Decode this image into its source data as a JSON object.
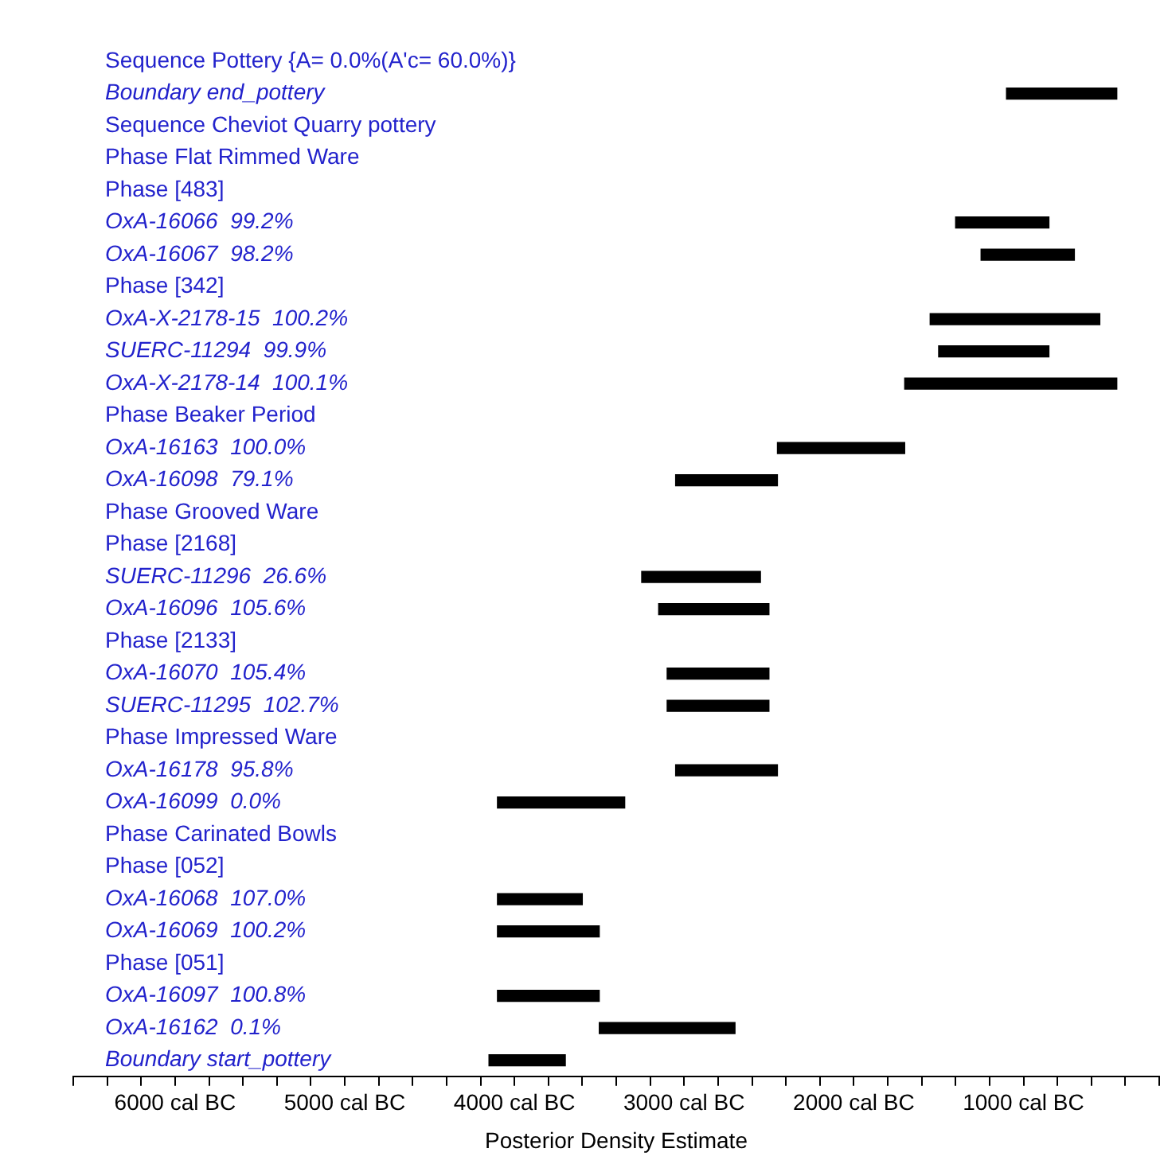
{
  "chart_data": {
    "type": "bar",
    "orientation": "horizontal",
    "xlabel": "Posterior Density Estimate",
    "categories": [
      "Sequence Pottery {A= 0.0%(A'c= 60.0%)}",
      "Boundary end_pottery",
      "Sequence Cheviot Quarry pottery",
      "Phase Flat Rimmed Ware",
      "Phase [483]",
      "OxA-16066  99.2%",
      "OxA-16067  98.2%",
      "Phase [342]",
      "OxA-X-2178-15  100.2%",
      "SUERC-11294  99.9%",
      "OxA-X-2178-14  100.1%",
      "Phase Beaker Period",
      "OxA-16163  100.0%",
      "OxA-16098  79.1%",
      "Phase Grooved Ware",
      "Phase [2168]",
      "SUERC-11296  26.6%",
      "OxA-16096  105.6%",
      "Phase [2133]",
      "OxA-16070  105.4%",
      "SUERC-11295  102.7%",
      "Phase Impressed Ware",
      "OxA-16178  95.8%",
      "OxA-16099  0.0%",
      "Phase Carinated Bowls",
      "Phase [052]",
      "OxA-16068  107.0%",
      "OxA-16069  100.2%",
      "Phase [051]",
      "OxA-16097  100.8%",
      "OxA-16162  0.1%",
      "Boundary start_pottery"
    ],
    "series": [
      {
        "color": "#000000",
        "base": [
          null,
          450,
          null,
          null,
          null,
          850,
          700,
          null,
          550,
          850,
          450,
          null,
          1700,
          2450,
          null,
          null,
          2550,
          2500,
          null,
          2500,
          2500,
          null,
          2450,
          3350,
          null,
          null,
          3600,
          3500,
          null,
          3500,
          2700,
          3700
        ],
        "values": [
          null,
          650,
          null,
          null,
          null,
          550,
          550,
          null,
          1000,
          650,
          1250,
          null,
          750,
          600,
          null,
          null,
          700,
          650,
          null,
          600,
          600,
          null,
          600,
          750,
          null,
          null,
          500,
          600,
          null,
          600,
          800,
          450
        ]
      }
    ],
    "xlim": [
      6600,
      200
    ],
    "xticks": [
      {
        "value": 6600,
        "label": null
      },
      {
        "value": 6400,
        "label": null
      },
      {
        "value": 6200,
        "label": null
      },
      {
        "value": 6000,
        "label": "6000 cal BC"
      },
      {
        "value": 5800,
        "label": null
      },
      {
        "value": 5600,
        "label": null
      },
      {
        "value": 5400,
        "label": null
      },
      {
        "value": 5200,
        "label": null
      },
      {
        "value": 5000,
        "label": "5000 cal BC"
      },
      {
        "value": 4800,
        "label": null
      },
      {
        "value": 4600,
        "label": null
      },
      {
        "value": 4400,
        "label": null
      },
      {
        "value": 4200,
        "label": null
      },
      {
        "value": 4000,
        "label": "4000 cal BC"
      },
      {
        "value": 3800,
        "label": null
      },
      {
        "value": 3600,
        "label": null
      },
      {
        "value": 3400,
        "label": null
      },
      {
        "value": 3200,
        "label": null
      },
      {
        "value": 3000,
        "label": "3000 cal BC"
      },
      {
        "value": 2800,
        "label": null
      },
      {
        "value": 2600,
        "label": null
      },
      {
        "value": 2400,
        "label": null
      },
      {
        "value": 2200,
        "label": null
      },
      {
        "value": 2000,
        "label": "2000 cal BC"
      },
      {
        "value": 1800,
        "label": null
      },
      {
        "value": 1600,
        "label": null
      },
      {
        "value": 1400,
        "label": null
      },
      {
        "value": 1200,
        "label": null
      },
      {
        "value": 1000,
        "label": "1000 cal BC"
      },
      {
        "value": 800,
        "label": null
      },
      {
        "value": 600,
        "label": null
      },
      {
        "value": 400,
        "label": null
      },
      {
        "value": 200,
        "label": null
      }
    ],
    "grid": false,
    "legend": false
  }
}
